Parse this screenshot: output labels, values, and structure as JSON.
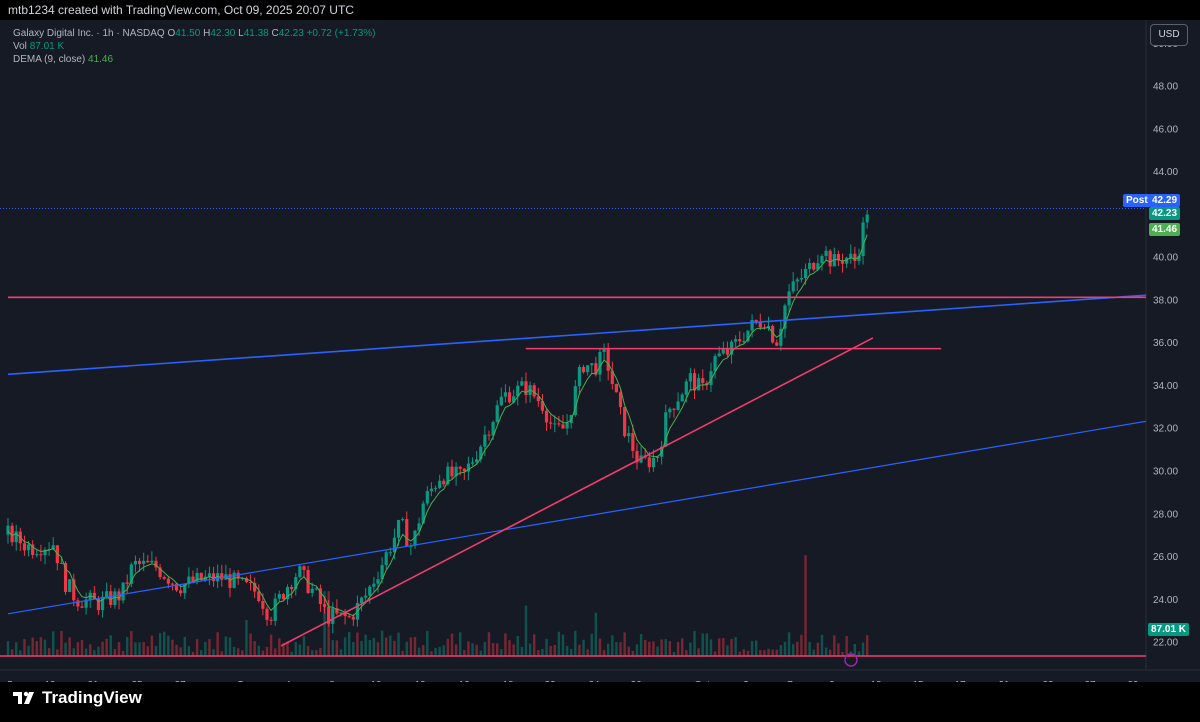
{
  "header": {
    "text": "mtb1234 created with TradingView.com, Oct 09, 2025 20:07 UTC"
  },
  "legend": {
    "title": "Galaxy Digital Inc. · 1h · NASDAQ",
    "o_label": "O",
    "o_val": "41.50",
    "h_label": "H",
    "h_val": "42.30",
    "l_label": "L",
    "l_val": "41.38",
    "c_label": "C",
    "c_val": "42.23",
    "change": "+0.72 (+1.73%)",
    "vol_label": "Vol",
    "vol_val": "87.01 K",
    "dema_label": "DEMA (9, close)",
    "dema_val": "41.46"
  },
  "currency_button": "USD",
  "price_tags": {
    "post_label": "Post",
    "post_val": "42.29",
    "last_val": "42.23",
    "dema_val": "41.46",
    "volume_val": "87.01 K"
  },
  "brand": "TradingView",
  "colors": {
    "background": "#161a25",
    "up": "#089981",
    "down": "#f23645",
    "dema": "#4caf50",
    "blue_line": "#2962ff",
    "pink_line": "#f23d6d",
    "axis_text": "#b2b5be"
  },
  "chart_data": {
    "type": "candlestick",
    "symbol": "Galaxy Digital Inc.",
    "interval": "1h",
    "exchange": "NASDAQ",
    "y_ticks": [
      "22.00",
      "24.00",
      "26.00",
      "28.00",
      "30.00",
      "32.00",
      "34.00",
      "36.00",
      "38.00",
      "40.00",
      "44.00",
      "46.00",
      "48.00",
      "50.00"
    ],
    "x_ticks": [
      "5",
      "19",
      "21",
      "25",
      "27",
      "Sep",
      "4",
      "8",
      "10",
      "12",
      "16",
      "18",
      "22",
      "24",
      "26",
      "Oct",
      "3",
      "7",
      "9",
      "13",
      "15",
      "17",
      "21",
      "23",
      "27",
      "29"
    ],
    "ylim": [
      21.7,
      50.6
    ],
    "price_path": [
      [
        0,
        27.0
      ],
      [
        0.02,
        26.4
      ],
      [
        0.04,
        26.6
      ],
      [
        0.05,
        24.8
      ],
      [
        0.06,
        24.0
      ],
      [
        0.08,
        23.8
      ],
      [
        0.1,
        24.2
      ],
      [
        0.11,
        25.6
      ],
      [
        0.13,
        25.5
      ],
      [
        0.15,
        24.6
      ],
      [
        0.17,
        24.9
      ],
      [
        0.19,
        25.0
      ],
      [
        0.21,
        24.5
      ],
      [
        0.22,
        24.3
      ],
      [
        0.23,
        23.2
      ],
      [
        0.245,
        24.6
      ],
      [
        0.255,
        25.3
      ],
      [
        0.27,
        24.2
      ],
      [
        0.28,
        23.2
      ],
      [
        0.3,
        23.1
      ],
      [
        0.315,
        24.2
      ],
      [
        0.33,
        25.8
      ],
      [
        0.345,
        27.5
      ],
      [
        0.355,
        26.4
      ],
      [
        0.365,
        28.5
      ],
      [
        0.38,
        29.8
      ],
      [
        0.4,
        29.7
      ],
      [
        0.415,
        31.2
      ],
      [
        0.435,
        33.5
      ],
      [
        0.455,
        33.9
      ],
      [
        0.47,
        33.1
      ],
      [
        0.48,
        31.8
      ],
      [
        0.49,
        32.0
      ],
      [
        0.505,
        35.0
      ],
      [
        0.515,
        34.8
      ],
      [
        0.525,
        35.4
      ],
      [
        0.54,
        32.2
      ],
      [
        0.555,
        30.3
      ],
      [
        0.57,
        30.6
      ],
      [
        0.58,
        32.8
      ],
      [
        0.6,
        34.3
      ],
      [
        0.61,
        33.7
      ],
      [
        0.62,
        35.2
      ],
      [
        0.635,
        35.6
      ],
      [
        0.645,
        36.3
      ],
      [
        0.655,
        36.8
      ],
      [
        0.665,
        37.1
      ],
      [
        0.675,
        36.0
      ],
      [
        0.685,
        38.2
      ],
      [
        0.695,
        38.9
      ],
      [
        0.705,
        39.5
      ],
      [
        0.715,
        40.4
      ],
      [
        0.725,
        39.7
      ],
      [
        0.735,
        40.0
      ],
      [
        0.745,
        39.8
      ],
      [
        0.755,
        42.2
      ]
    ],
    "volume_spikes": [
      [
        0.21,
        15
      ],
      [
        0.28,
        27
      ],
      [
        0.455,
        21
      ],
      [
        0.515,
        18
      ],
      [
        0.7,
        42
      ],
      [
        0.745,
        5
      ]
    ],
    "trendlines": [
      {
        "name": "upper blue channel",
        "start": [
          0,
          34.5
        ],
        "end": [
          1,
          38.2
        ]
      },
      {
        "name": "lower blue channel",
        "start": [
          0,
          23.3
        ],
        "end": [
          1,
          32.3
        ]
      },
      {
        "name": "horizontal resistance",
        "start": [
          0,
          38.1
        ],
        "end": [
          1,
          38.1
        ]
      },
      {
        "name": "short horizontal",
        "start": [
          0.455,
          35.7
        ],
        "end": [
          0.82,
          35.7
        ]
      },
      {
        "name": "rising support",
        "start": [
          0.24,
          21.8
        ],
        "end": [
          0.76,
          36.2
        ]
      }
    ]
  }
}
